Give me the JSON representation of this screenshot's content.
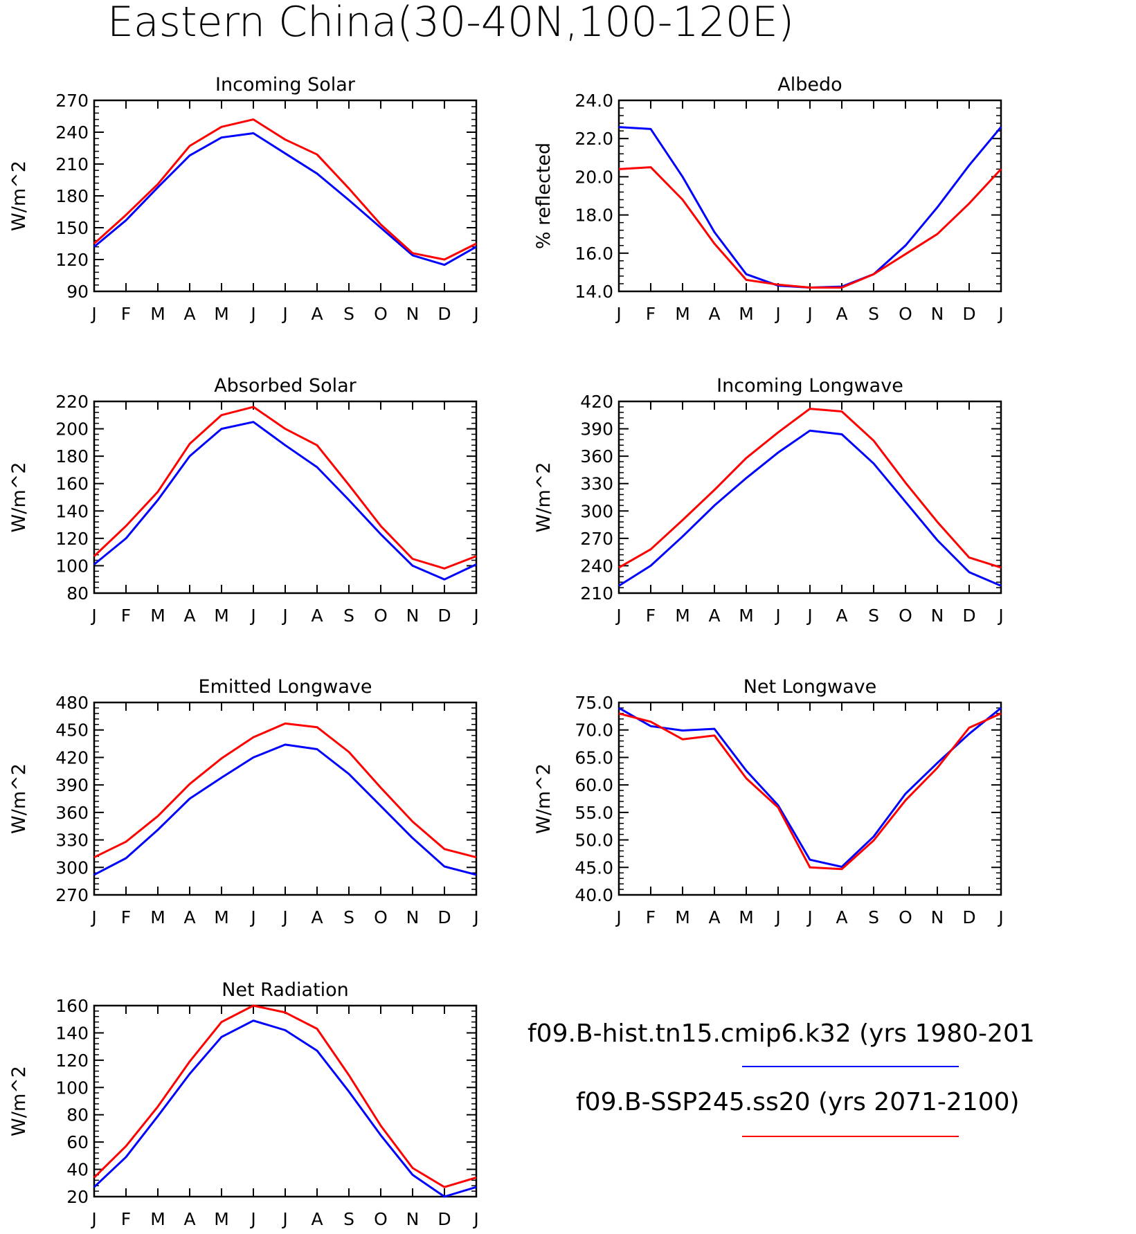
{
  "figure": {
    "title": "Eastern China(30-40N,100-120E)"
  },
  "legend": {
    "entries": [
      {
        "label": "f09.B-hist.tn15.cmip6.k32 (yrs 1980-201",
        "color": "#0000ff"
      },
      {
        "label": "f09.B-SSP245.ss20 (yrs 2071-2100)",
        "color": "#ff0000"
      }
    ]
  },
  "chart_data": [
    {
      "type": "line",
      "title": "Incoming Solar",
      "ylabel": "W/m^2",
      "categories": [
        "J",
        "F",
        "M",
        "A",
        "M",
        "J",
        "J",
        "A",
        "S",
        "O",
        "N",
        "D",
        "J"
      ],
      "ylim": [
        90,
        270
      ],
      "yticks": [
        "90",
        "120",
        "150",
        "180",
        "210",
        "240",
        "270"
      ],
      "series": [
        {
          "color": "#0000ff",
          "values": [
            132,
            157,
            188,
            218,
            235,
            239,
            220,
            201,
            176,
            150,
            124,
            115,
            132
          ]
        },
        {
          "color": "#ff0000",
          "values": [
            135,
            162,
            191,
            227,
            245,
            252,
            233,
            219,
            187,
            153,
            126,
            120,
            135
          ]
        }
      ]
    },
    {
      "type": "line",
      "title": "Albedo",
      "ylabel": "% reflected",
      "categories": [
        "J",
        "F",
        "M",
        "A",
        "M",
        "J",
        "J",
        "A",
        "S",
        "O",
        "N",
        "D",
        "J"
      ],
      "ylim": [
        14.0,
        24.0
      ],
      "yticks": [
        "14.0",
        "16.0",
        "18.0",
        "20.0",
        "22.0",
        "24.0"
      ],
      "series": [
        {
          "color": "#0000ff",
          "values": [
            22.6,
            22.5,
            20.0,
            17.1,
            14.9,
            14.3,
            14.2,
            14.25,
            14.9,
            16.4,
            18.4,
            20.6,
            22.6
          ]
        },
        {
          "color": "#ff0000",
          "values": [
            20.4,
            20.5,
            18.8,
            16.5,
            14.6,
            14.35,
            14.2,
            14.2,
            14.9,
            15.95,
            17.0,
            18.6,
            20.4
          ]
        }
      ]
    },
    {
      "type": "line",
      "title": "Absorbed Solar",
      "ylabel": "W/m^2",
      "categories": [
        "J",
        "F",
        "M",
        "A",
        "M",
        "J",
        "J",
        "A",
        "S",
        "O",
        "N",
        "D",
        "J"
      ],
      "ylim": [
        80,
        220
      ],
      "yticks": [
        "80",
        "100",
        "120",
        "140",
        "160",
        "180",
        "200",
        "220"
      ],
      "series": [
        {
          "color": "#0000ff",
          "values": [
            101,
            120,
            148,
            180,
            200,
            205,
            188,
            172,
            148,
            123,
            100,
            90,
            101
          ]
        },
        {
          "color": "#ff0000",
          "values": [
            107,
            129,
            154,
            189,
            210,
            216,
            200,
            188,
            159,
            129,
            105,
            98,
            107
          ]
        }
      ]
    },
    {
      "type": "line",
      "title": "Incoming Longwave",
      "ylabel": "W/m^2",
      "categories": [
        "J",
        "F",
        "M",
        "A",
        "M",
        "J",
        "J",
        "A",
        "S",
        "O",
        "N",
        "D",
        "J"
      ],
      "ylim": [
        210,
        420
      ],
      "yticks": [
        "210",
        "240",
        "270",
        "300",
        "330",
        "360",
        "390",
        "420"
      ],
      "series": [
        {
          "color": "#0000ff",
          "values": [
            218,
            240,
            272,
            306,
            336,
            364,
            388,
            384,
            352,
            310,
            268,
            233,
            218
          ]
        },
        {
          "color": "#ff0000",
          "values": [
            238,
            258,
            290,
            323,
            358,
            386,
            412,
            409,
            377,
            331,
            288,
            249,
            238
          ]
        }
      ]
    },
    {
      "type": "line",
      "title": "Emitted Longwave",
      "ylabel": "W/m^2",
      "categories": [
        "J",
        "F",
        "M",
        "A",
        "M",
        "J",
        "J",
        "A",
        "S",
        "O",
        "N",
        "D",
        "J"
      ],
      "ylim": [
        270,
        480
      ],
      "yticks": [
        "270",
        "300",
        "330",
        "360",
        "390",
        "420",
        "450",
        "480"
      ],
      "series": [
        {
          "color": "#0000ff",
          "values": [
            292,
            310,
            341,
            375,
            398,
            420,
            434,
            429,
            402,
            367,
            332,
            301,
            292
          ]
        },
        {
          "color": "#ff0000",
          "values": [
            311,
            328,
            356,
            391,
            419,
            442,
            457,
            453,
            426,
            387,
            350,
            320,
            311
          ]
        }
      ]
    },
    {
      "type": "line",
      "title": "Net Longwave",
      "ylabel": "W/m^2",
      "categories": [
        "J",
        "F",
        "M",
        "A",
        "M",
        "J",
        "J",
        "A",
        "S",
        "O",
        "N",
        "D",
        "J"
      ],
      "ylim": [
        40.0,
        75.0
      ],
      "yticks": [
        "40.0",
        "45.0",
        "50.0",
        "55.0",
        "60.0",
        "65.0",
        "70.0",
        "75.0"
      ],
      "series": [
        {
          "color": "#0000ff",
          "values": [
            74.0,
            70.7,
            69.9,
            70.2,
            62.6,
            56.3,
            46.4,
            45.1,
            50.6,
            58.4,
            64.0,
            69.3,
            74.0
          ]
        },
        {
          "color": "#ff0000",
          "values": [
            73.0,
            71.5,
            68.3,
            69.0,
            61.2,
            55.9,
            45.0,
            44.7,
            49.9,
            57.2,
            63.1,
            70.4,
            73.0
          ]
        }
      ]
    },
    {
      "type": "line",
      "title": "Net Radiation",
      "ylabel": "W/m^2",
      "categories": [
        "J",
        "F",
        "M",
        "A",
        "M",
        "J",
        "J",
        "A",
        "S",
        "O",
        "N",
        "D",
        "J"
      ],
      "ylim": [
        20,
        160
      ],
      "yticks": [
        "20",
        "40",
        "60",
        "80",
        "100",
        "120",
        "140",
        "160"
      ],
      "series": [
        {
          "color": "#0000ff",
          "values": [
            27,
            49,
            79,
            110,
            137,
            149,
            142,
            127,
            97,
            65,
            36,
            20,
            27
          ]
        },
        {
          "color": "#ff0000",
          "values": [
            34,
            57,
            86,
            119,
            148,
            160,
            155,
            143,
            109,
            72,
            41,
            27,
            34
          ]
        }
      ]
    }
  ]
}
